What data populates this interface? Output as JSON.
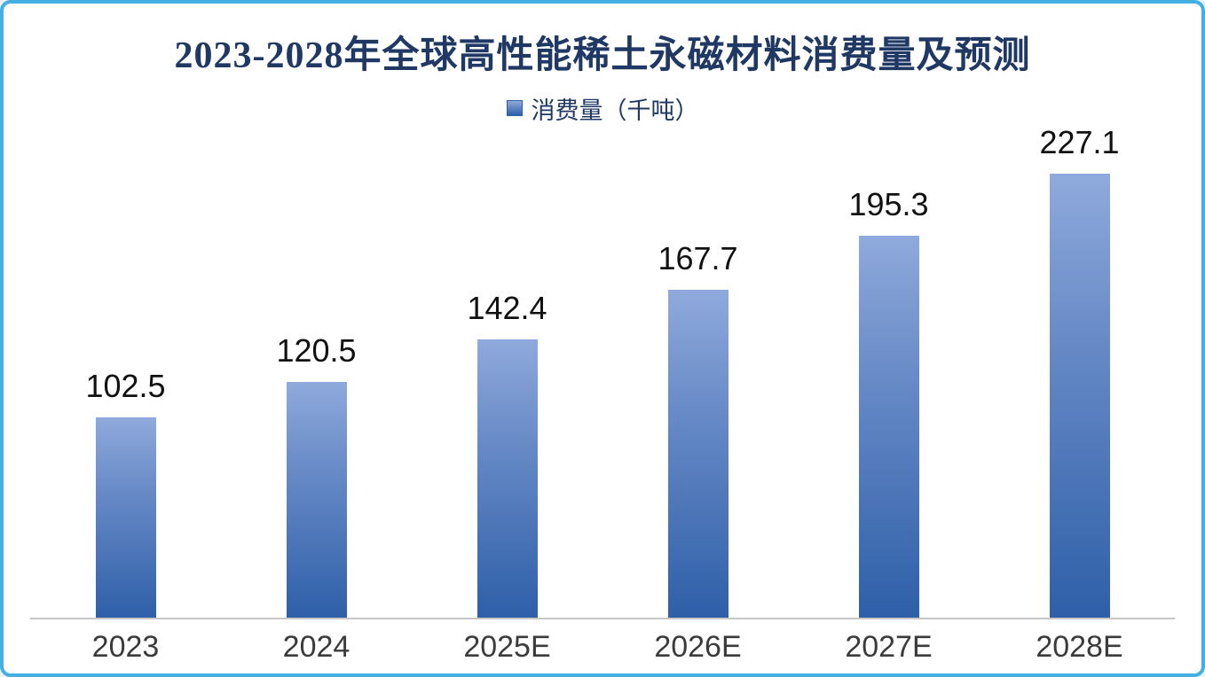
{
  "page": {
    "background": "#FFFFFF",
    "border_color": "#45AEE2"
  },
  "chart_data": {
    "type": "bar",
    "title": "2023-2028年全球高性能稀土永磁材料消费量及预测",
    "legend": [
      {
        "label": "消费量（千吨）",
        "swatch_color_top": "#8FAADC",
        "swatch_color_bottom": "#2E5FA8"
      }
    ],
    "legend_position": "top-center",
    "categories": [
      "2023",
      "2024",
      "2025E",
      "2026E",
      "2027E",
      "2028E"
    ],
    "values": [
      102.5,
      120.5,
      142.4,
      167.7,
      195.3,
      227.1
    ],
    "xlabel": "",
    "ylabel": "",
    "ylim": [
      0,
      250
    ],
    "grid": false,
    "value_labels_shown": true,
    "colors": {
      "bar_gradient_top": "#8FAADC",
      "bar_gradient_bottom": "#2E5FA8",
      "title": "#1F3864",
      "axis_line": "#C6C6C6",
      "value_label": "#111111",
      "category_label": "#3B3B3B"
    }
  }
}
